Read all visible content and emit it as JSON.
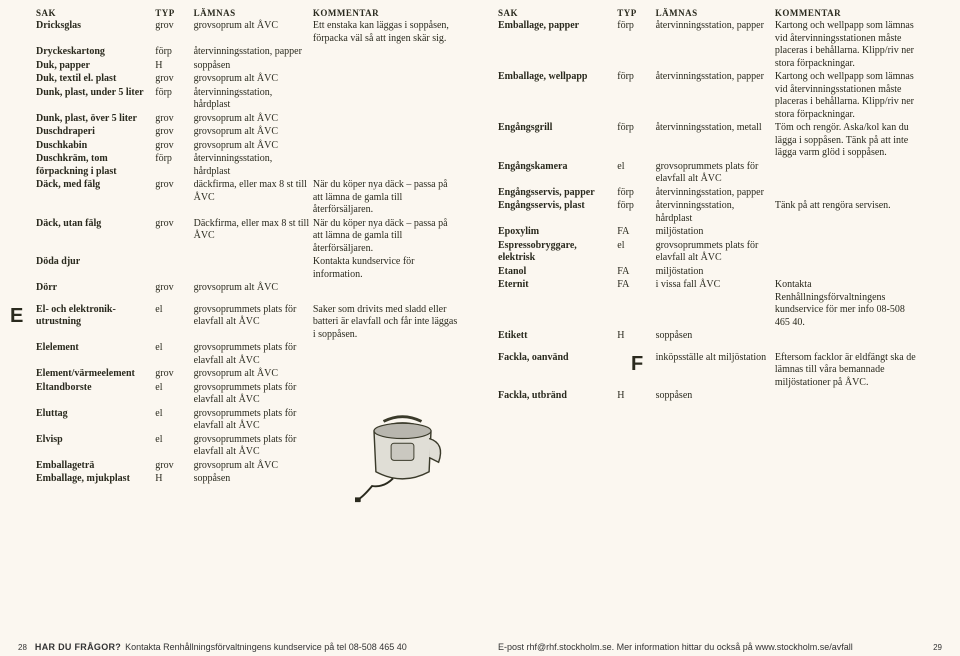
{
  "headers": {
    "sak": "SAK",
    "typ": "TYP",
    "lamnas": "LÄMNAS",
    "kommentar": "KOMMENTAR"
  },
  "left_rows": [
    {
      "sak": "Dricksglas",
      "typ": "grov",
      "lam": "grovsoprum alt ÅVC",
      "kom": "Ett enstaka kan läggas i soppåsen, förpacka väl så att ingen skär sig."
    },
    {
      "sak": "Dryckeskartong",
      "typ": "förp",
      "lam": "återvinningsstation, papper",
      "kom": ""
    },
    {
      "sak": "Duk, papper",
      "typ": "H",
      "lam": "soppåsen",
      "kom": ""
    },
    {
      "sak": "Duk, textil el. plast",
      "typ": "grov",
      "lam": "grovsoprum alt ÅVC",
      "kom": ""
    },
    {
      "sak": "Dunk, plast, under 5 liter",
      "typ": "förp",
      "lam": "återvinningsstation, hårdplast",
      "kom": ""
    },
    {
      "sak": "Dunk, plast, över 5 liter",
      "typ": "grov",
      "lam": "grovsoprum alt ÅVC",
      "kom": ""
    },
    {
      "sak": "Duschdraperi",
      "typ": "grov",
      "lam": "grovsoprum alt ÅVC",
      "kom": ""
    },
    {
      "sak": "Duschkabin",
      "typ": "grov",
      "lam": "grovsoprum alt ÅVC",
      "kom": ""
    },
    {
      "sak": "Duschkräm, tom förpackning i plast",
      "typ": "förp",
      "lam": "återvinningsstation, hårdplast",
      "kom": ""
    },
    {
      "sak": "Däck, med fälg",
      "typ": "grov",
      "lam": "däckfirma, eller max 8 st till ÅVC",
      "kom": "När du köper nya däck – passa på att lämna de gamla till återförsäljaren."
    },
    {
      "sak": "Däck, utan fälg",
      "typ": "grov",
      "lam": "Däckfirma, eller max 8 st till ÅVC",
      "kom": "När du köper nya däck – passa på att lämna de gamla till återförsäljaren."
    },
    {
      "sak": "Döda djur",
      "typ": "",
      "lam": "",
      "kom": "Kontakta kundservice för information."
    },
    {
      "sak": "Dörr",
      "typ": "grov",
      "lam": "grovsoprum alt ÅVC",
      "kom": ""
    },
    {
      "sak": "El- och elektronik-utrustning",
      "typ": "el",
      "lam": "grovsoprummets plats för elavfall alt ÅVC",
      "kom": "Saker som drivits med sladd eller batteri är elavfall och får inte läggas i soppåsen.",
      "letter": "E"
    },
    {
      "sak": "Elelement",
      "typ": "el",
      "lam": "grovsoprummets plats för elavfall alt ÅVC",
      "kom": ""
    },
    {
      "sak": "Element/värmeelement",
      "typ": "grov",
      "lam": "grovsoprum alt ÅVC",
      "kom": ""
    },
    {
      "sak": "Eltandborste",
      "typ": "el",
      "lam": "grovsoprummets plats för elavfall alt ÅVC",
      "kom": ""
    },
    {
      "sak": "Eluttag",
      "typ": "el",
      "lam": "grovsoprummets plats för elavfall alt ÅVC",
      "kom": ""
    },
    {
      "sak": "Elvisp",
      "typ": "el",
      "lam": "grovsoprummets plats för elavfall alt ÅVC",
      "kom": ""
    },
    {
      "sak": "Emballageträ",
      "typ": "grov",
      "lam": "grovsoprum alt ÅVC",
      "kom": ""
    },
    {
      "sak": "Emballage, mjukplast",
      "typ": "H",
      "lam": "soppåsen",
      "kom": ""
    }
  ],
  "right_rows": [
    {
      "sak": "Emballage, papper",
      "typ": "förp",
      "lam": "återvinningsstation, papper",
      "kom": "Kartong och wellpapp som lämnas vid återvinningsstationen måste placeras i behållarna. Klipp/riv ner stora förpackningar."
    },
    {
      "sak": "Emballage, wellpapp",
      "typ": "förp",
      "lam": "återvinningsstation, papper",
      "kom": "Kartong och wellpapp som lämnas vid återvinningsstationen måste placeras i behållarna. Klipp/riv ner stora förpackningar."
    },
    {
      "sak": "Engångsgrill",
      "typ": "förp",
      "lam": "återvinningsstation, metall",
      "kom": "Töm och rengör. Aska/kol kan du lägga i soppåsen. Tänk på att inte lägga varm glöd i soppåsen."
    },
    {
      "sak": "Engångskamera",
      "typ": "el",
      "lam": "grovsoprummets plats för elavfall alt ÅVC",
      "kom": ""
    },
    {
      "sak": "Engångsservis, papper",
      "typ": "förp",
      "lam": "återvinningsstation, papper",
      "kom": ""
    },
    {
      "sak": "Engångsservis, plast",
      "typ": "förp",
      "lam": "återvinningsstation, hårdplast",
      "kom": "Tänk på att rengöra servisen."
    },
    {
      "sak": "Epoxylim",
      "typ": "FA",
      "lam": "miljöstation",
      "kom": ""
    },
    {
      "sak": "Espressobryggare, elektrisk",
      "typ": "el",
      "lam": "grovsoprummets plats för elavfall alt ÅVC",
      "kom": ""
    },
    {
      "sak": "Etanol",
      "typ": "FA",
      "lam": "miljöstation",
      "kom": ""
    },
    {
      "sak": "Eternit",
      "typ": "FA",
      "lam": "i vissa fall ÅVC",
      "kom": "Kontakta Renhållningsförvaltningens kundservice för mer info 08-508 465 40."
    },
    {
      "sak": "Etikett",
      "typ": "H",
      "lam": "soppåsen",
      "kom": ""
    },
    {
      "sak": "Fackla, oanvänd",
      "typ": "",
      "lam": "inköpsställe alt miljöstation",
      "kom": "Eftersom facklor är eldfängt ska de lämnas till våra bemannade miljöstationer på ÅVC.",
      "letter": "F"
    },
    {
      "sak": "Fackla, utbränd",
      "typ": "H",
      "lam": "soppåsen",
      "kom": ""
    }
  ],
  "footer": {
    "left_num": "28",
    "left_q": "HAR DU FRÅGOR?",
    "left_text": "Kontakta Renhållningsförvaltningens kundservice på tel 08-508 465 40",
    "right_text": "E-post rhf@rhf.stockholm.se. Mer information hittar du också på www.stockholm.se/avfall",
    "right_num": "29"
  },
  "kettle_colors": {
    "body": "#d9d7d0",
    "outline": "#3a3a2a",
    "cord": "#2a2a1e"
  }
}
